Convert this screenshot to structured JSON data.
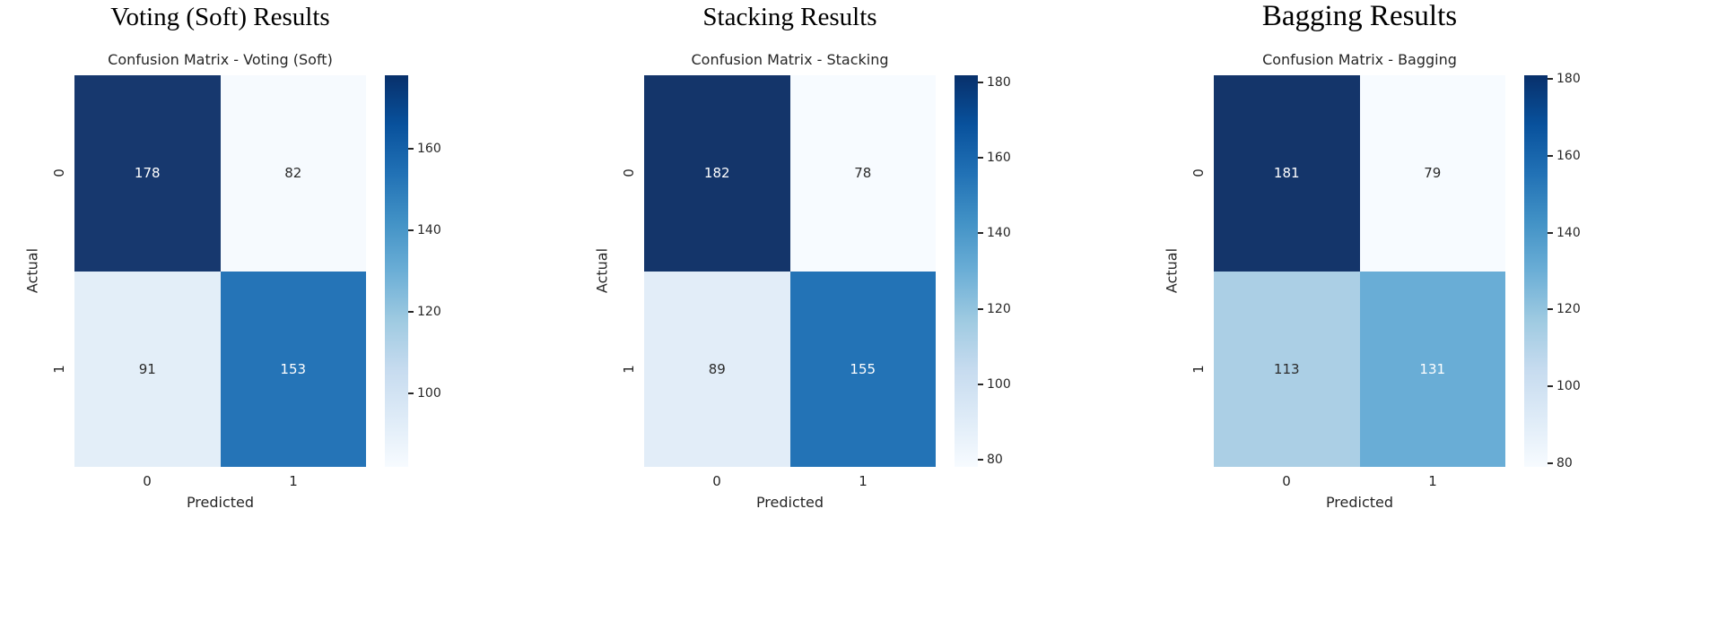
{
  "style": {
    "background": "#ffffff",
    "text_color": "#262626",
    "colormap_stops_bottom_to_top": [
      "#f7fbff",
      "#deebf7",
      "#c6dbef",
      "#9ecae1",
      "#6baed6",
      "#4292c6",
      "#2171b5",
      "#08519c",
      "#08306b"
    ]
  },
  "chart_data": [
    {
      "type": "heatmap",
      "panel_title": "Voting (Soft) Results",
      "title": "Confusion Matrix - Voting (Soft)",
      "xlabel": "Predicted",
      "ylabel": "Actual",
      "x_ticklabels": [
        "0",
        "1"
      ],
      "y_ticklabels": [
        "0",
        "1"
      ],
      "matrix": [
        [
          178,
          82
        ],
        [
          91,
          153
        ]
      ],
      "vmin": 82,
      "vmax": 178,
      "colorbar_ticks": [
        100,
        120,
        140,
        160
      ],
      "colormap": "Blues",
      "legend_position": "right-colorbar",
      "cell_colors": [
        [
          "#17386e",
          "#f6fafe"
        ],
        [
          "#e3eef8",
          "#2574b7"
        ]
      ],
      "cell_text_colors": [
        [
          "#ffffff",
          "#2b2b2b"
        ],
        [
          "#2b2b2b",
          "#ffffff"
        ]
      ]
    },
    {
      "type": "heatmap",
      "panel_title": "Stacking Results",
      "title": "Confusion Matrix - Stacking",
      "xlabel": "Predicted",
      "ylabel": "Actual",
      "x_ticklabels": [
        "0",
        "1"
      ],
      "y_ticklabels": [
        "0",
        "1"
      ],
      "matrix": [
        [
          182,
          78
        ],
        [
          89,
          155
        ]
      ],
      "vmin": 78,
      "vmax": 182,
      "colorbar_ticks": [
        80,
        100,
        120,
        140,
        160,
        180
      ],
      "colormap": "Blues",
      "legend_position": "right-colorbar",
      "cell_colors": [
        [
          "#14356a",
          "#f7fbff"
        ],
        [
          "#e2edf8",
          "#2373b6"
        ]
      ],
      "cell_text_colors": [
        [
          "#ffffff",
          "#2b2b2b"
        ],
        [
          "#2b2b2b",
          "#ffffff"
        ]
      ]
    },
    {
      "type": "heatmap",
      "panel_title": "Bagging Results",
      "title": "Confusion Matrix - Bagging",
      "xlabel": "Predicted",
      "ylabel": "Actual",
      "x_ticklabels": [
        "0",
        "1"
      ],
      "y_ticklabels": [
        "0",
        "1"
      ],
      "matrix": [
        [
          181,
          79
        ],
        [
          113,
          131
        ]
      ],
      "vmin": 79,
      "vmax": 181,
      "colorbar_ticks": [
        80,
        100,
        120,
        140,
        160,
        180
      ],
      "colormap": "Blues",
      "legend_position": "right-colorbar",
      "cell_colors": [
        [
          "#14356a",
          "#f7fbff"
        ],
        [
          "#abcfe5",
          "#69add6"
        ]
      ],
      "cell_text_colors": [
        [
          "#ffffff",
          "#2b2b2b"
        ],
        [
          "#2b2b2b",
          "#ffffff"
        ]
      ]
    }
  ]
}
